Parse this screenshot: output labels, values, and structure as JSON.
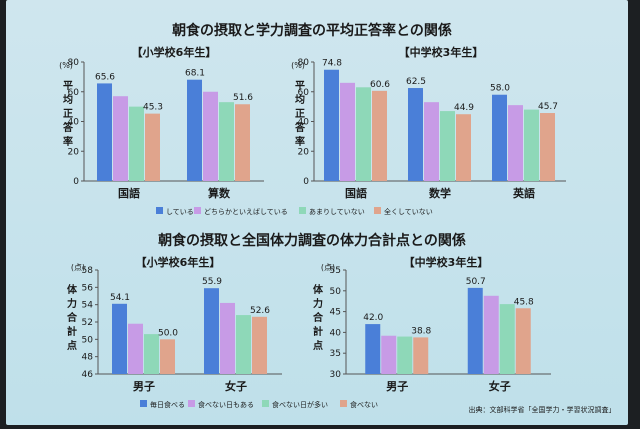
{
  "slide": {
    "source_note": "出典：文部科学省「全国学力・学習状況調査」"
  },
  "chart_data": [
    {
      "type": "bar",
      "section_title": "朝食の摂取と学力調査の平均正答率との関係",
      "title": "【小学校6年生】",
      "unit": "(%)",
      "ylabel": "平均正答率",
      "ylim": [
        0,
        80
      ],
      "yticks": [
        0,
        20,
        40,
        60,
        80
      ],
      "categories": [
        "国語",
        "算数"
      ],
      "series": [
        {
          "name": "している",
          "color": "#4a7fd8",
          "values": [
            65.6,
            68.1
          ]
        },
        {
          "name": "どちらかといえばしている",
          "color": "#c79be6",
          "values": [
            57,
            60
          ]
        },
        {
          "name": "あまりしていない",
          "color": "#8ed8b8",
          "values": [
            50,
            53
          ]
        },
        {
          "name": "全くしていない",
          "color": "#e0a48c",
          "values": [
            45.3,
            51.6
          ]
        }
      ],
      "labels": [
        [
          "65.6",
          null,
          null,
          "45.3"
        ],
        [
          "68.1",
          null,
          null,
          "51.6"
        ]
      ],
      "legend": "bottom"
    },
    {
      "type": "bar",
      "title": "【中学校3年生】",
      "unit": "(%)",
      "ylabel": "平均正答率",
      "ylim": [
        0,
        80
      ],
      "yticks": [
        0,
        20,
        40,
        60,
        80
      ],
      "categories": [
        "国語",
        "数学",
        "英語"
      ],
      "series": [
        {
          "name": "している",
          "color": "#4a7fd8",
          "values": [
            74.8,
            62.5,
            58.0
          ]
        },
        {
          "name": "どちらかといえばしている",
          "color": "#c79be6",
          "values": [
            66,
            53,
            51
          ]
        },
        {
          "name": "あまりしていない",
          "color": "#8ed8b8",
          "values": [
            63,
            47,
            48
          ]
        },
        {
          "name": "全くしていない",
          "color": "#e0a48c",
          "values": [
            60.6,
            44.9,
            45.7
          ]
        }
      ],
      "labels": [
        [
          "74.8",
          null,
          null,
          "60.6"
        ],
        [
          "62.5",
          null,
          null,
          "44.9"
        ],
        [
          "58.0",
          null,
          null,
          "45.7"
        ]
      ],
      "legend": "bottom"
    },
    {
      "type": "bar",
      "section_title": "朝食の摂取と全国体力調査の体力合計点との関係",
      "title": "【小学校6年生】",
      "unit": "(点)",
      "ylabel": "体力合計点",
      "ylim": [
        46,
        58
      ],
      "yticks": [
        46,
        48,
        50,
        52,
        54,
        56,
        58
      ],
      "categories": [
        "男子",
        "女子"
      ],
      "series": [
        {
          "name": "毎日食べる",
          "color": "#4a7fd8",
          "values": [
            54.1,
            55.9
          ]
        },
        {
          "name": "食べない日もある",
          "color": "#c79be6",
          "values": [
            51.8,
            54.2
          ]
        },
        {
          "name": "食べない日が多い",
          "color": "#8ed8b8",
          "values": [
            50.6,
            52.8
          ]
        },
        {
          "name": "食べない",
          "color": "#e0a48c",
          "values": [
            50.0,
            52.6
          ]
        }
      ],
      "labels": [
        [
          "54.1",
          null,
          null,
          "50.0"
        ],
        [
          "55.9",
          null,
          null,
          "52.6"
        ]
      ],
      "legend": "bottom"
    },
    {
      "type": "bar",
      "title": "【中学校3年生】",
      "unit": "(点)",
      "ylabel": "体力合計点",
      "ylim": [
        30,
        55
      ],
      "yticks": [
        30,
        35,
        40,
        45,
        50,
        55
      ],
      "categories": [
        "男子",
        "女子"
      ],
      "series": [
        {
          "name": "毎日食べる",
          "color": "#4a7fd8",
          "values": [
            42.0,
            50.7
          ]
        },
        {
          "name": "食べない日もある",
          "color": "#c79be6",
          "values": [
            39.2,
            48.8
          ]
        },
        {
          "name": "食べない日が多い",
          "color": "#8ed8b8",
          "values": [
            39.0,
            46.8
          ]
        },
        {
          "name": "食べない",
          "color": "#e0a48c",
          "values": [
            38.8,
            45.8
          ]
        }
      ],
      "labels": [
        [
          "42.0",
          null,
          null,
          "38.8"
        ],
        [
          "50.7",
          null,
          null,
          "45.8"
        ]
      ],
      "legend": "bottom"
    }
  ]
}
